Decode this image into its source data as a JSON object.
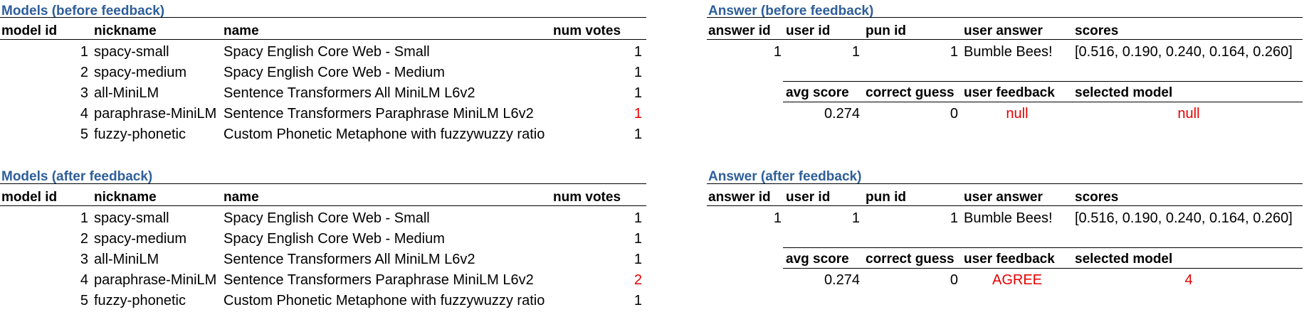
{
  "colors": {
    "title": "#2e5e9a",
    "highlight": "#e60000"
  },
  "models_before": {
    "title": "Models (before feedback)",
    "headers": [
      "model id",
      "nickname",
      "name",
      "num votes"
    ],
    "rows": [
      {
        "id": "1",
        "nickname": "spacy-small",
        "name": "Spacy English Core Web - Small",
        "votes": "1"
      },
      {
        "id": "2",
        "nickname": "spacy-medium",
        "name": "Spacy English Core Web - Medium",
        "votes": "1"
      },
      {
        "id": "3",
        "nickname": "all-MiniLM",
        "name": "Sentence Transformers All MiniLM L6v2",
        "votes": "1"
      },
      {
        "id": "4",
        "nickname": "paraphrase-MiniLM",
        "name": "Sentence Transformers Paraphrase MiniLM L6v2",
        "votes": "1"
      },
      {
        "id": "5",
        "nickname": "fuzzy-phonetic",
        "name": "Custom Phonetic Metaphone with fuzzywuzzy ratio",
        "votes": "1"
      }
    ]
  },
  "models_after": {
    "title": "Models (after feedback)",
    "headers": [
      "model id",
      "nickname",
      "name",
      "num votes"
    ],
    "rows": [
      {
        "id": "1",
        "nickname": "spacy-small",
        "name": "Spacy English Core Web - Small",
        "votes": "1"
      },
      {
        "id": "2",
        "nickname": "spacy-medium",
        "name": "Spacy English Core Web - Medium",
        "votes": "1"
      },
      {
        "id": "3",
        "nickname": "all-MiniLM",
        "name": "Sentence Transformers All MiniLM L6v2",
        "votes": "1"
      },
      {
        "id": "4",
        "nickname": "paraphrase-MiniLM",
        "name": "Sentence Transformers Paraphrase MiniLM L6v2",
        "votes": "2"
      },
      {
        "id": "5",
        "nickname": "fuzzy-phonetic",
        "name": "Custom Phonetic Metaphone with fuzzywuzzy ratio",
        "votes": "1"
      }
    ]
  },
  "answer_before": {
    "title": "Answer (before feedback)",
    "headers": [
      "answer id",
      "user id",
      "pun id",
      "user answer",
      "scores"
    ],
    "row": {
      "answer_id": "1",
      "user_id": "1",
      "pun_id": "1",
      "user_answer": "Bumble Bees!",
      "scores": "[0.516, 0.190, 0.240, 0.164, 0.260]"
    },
    "headers2": [
      "avg score",
      "correct guess",
      "user feedback",
      "selected model"
    ],
    "row2": {
      "avg_score": "0.274",
      "correct_guess": "0",
      "user_feedback": "null",
      "selected_model": "null"
    }
  },
  "answer_after": {
    "title": "Answer (after feedback)",
    "headers": [
      "answer id",
      "user id",
      "pun id",
      "user answer",
      "scores"
    ],
    "row": {
      "answer_id": "1",
      "user_id": "1",
      "pun_id": "1",
      "user_answer": "Bumble Bees!",
      "scores": "[0.516, 0.190, 0.240, 0.164, 0.260]"
    },
    "headers2": [
      "avg score",
      "correct guess",
      "user feedback",
      "selected model"
    ],
    "row2": {
      "avg_score": "0.274",
      "correct_guess": "0",
      "user_feedback": "AGREE",
      "selected_model": "4"
    }
  }
}
